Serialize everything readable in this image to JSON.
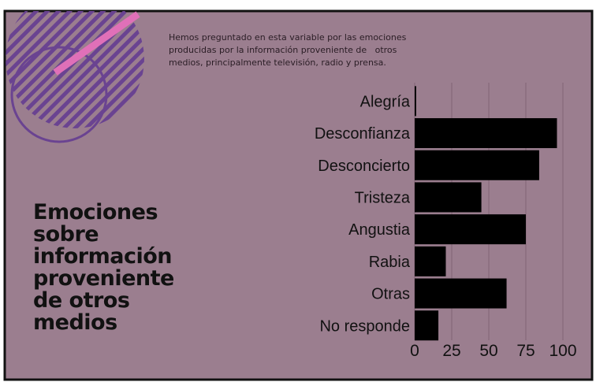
{
  "chart_data": {
    "type": "barh",
    "title_lines": [
      "Emociones",
      "sobre",
      "información",
      "proveniente",
      "de otros",
      "medios"
    ],
    "subtitle_lines": [
      "Hemos preguntado en esta variable por las emociones",
      "producidas por la información proveniente de   otros",
      "medios, principalmente televisión, radio y prensa."
    ],
    "categories": [
      "Alegría",
      "Desconfianza",
      "Desconcierto",
      "Tristeza",
      "Angustia",
      "Rabia",
      "Otras",
      "No responde"
    ],
    "values": [
      1,
      96,
      84,
      45,
      75,
      21,
      62,
      16
    ],
    "color": "#000000",
    "xlim": [
      0,
      100
    ],
    "xticks": [
      0,
      25,
      50,
      75,
      100
    ],
    "grid": true
  }
}
